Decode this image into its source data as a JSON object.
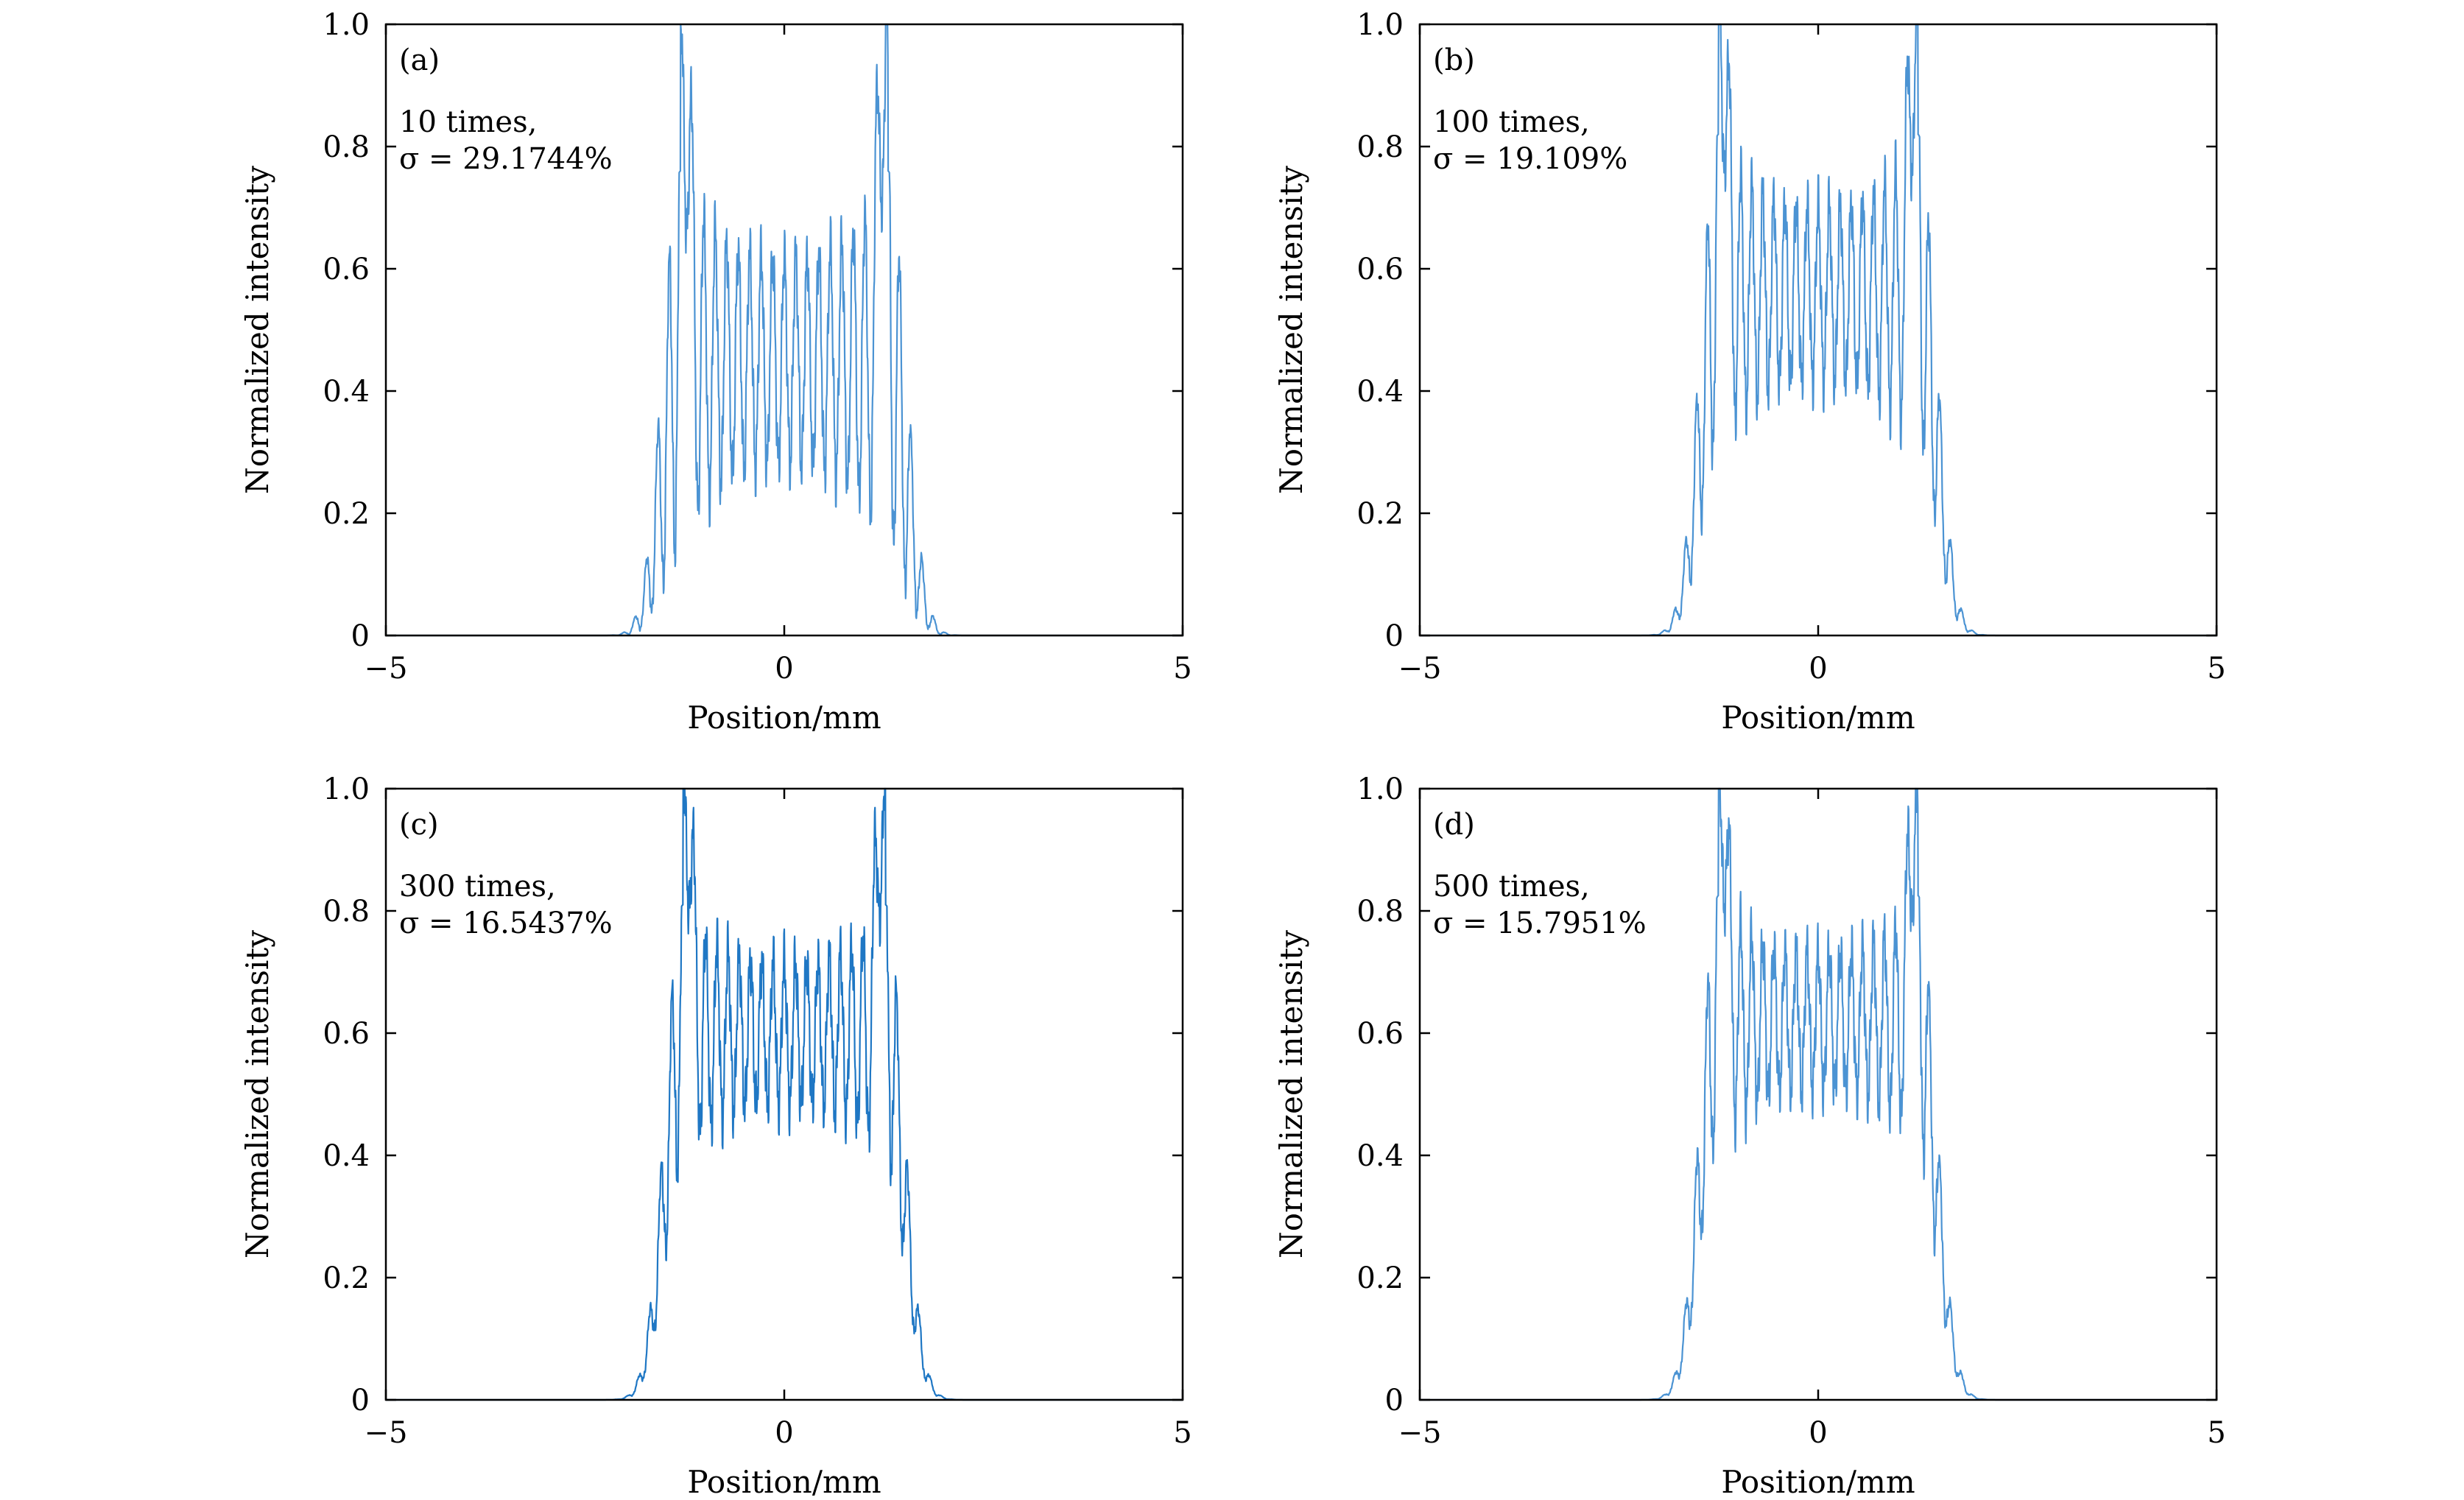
{
  "chart_data": [
    {
      "type": "line",
      "panel": "(a)",
      "annotation": [
        "10 times,",
        "σ = 29.1744%"
      ],
      "xlabel": "Position/mm",
      "ylabel": "Normalized intensity",
      "xlim": [
        -5,
        5
      ],
      "ylim": [
        0,
        1
      ],
      "xticks": [
        -5,
        0,
        5
      ],
      "xtick_labels": [
        "−5",
        "0",
        "5"
      ],
      "yticks": [
        0,
        0.2,
        0.4,
        0.6,
        0.8,
        1.0
      ],
      "ytick_labels": [
        "0",
        "0.2",
        "0.4",
        "0.6",
        "0.8",
        "1.0"
      ],
      "color": "#4b93d3",
      "series": [
        {
          "name": "10 times",
          "profile": {
            "edge_peak_left": 0.95,
            "edge_peak_right": 1.0,
            "fringe_max": 0.8,
            "fringe_min": 0.18,
            "center_level": 0.45,
            "half_width_mm": 1.3,
            "n_fringes": 18
          }
        }
      ]
    },
    {
      "type": "line",
      "panel": "(b)",
      "annotation": [
        "100 times,",
        "σ = 19.109%"
      ],
      "xlabel": "Position/mm",
      "ylabel": "Normalized intensity",
      "xlim": [
        -5,
        5
      ],
      "ylim": [
        0,
        1
      ],
      "xticks": [
        -5,
        0,
        5
      ],
      "xtick_labels": [
        "−5",
        "0",
        "5"
      ],
      "yticks": [
        0,
        0.2,
        0.4,
        0.6,
        0.8,
        1.0
      ],
      "ytick_labels": [
        "0",
        "0.2",
        "0.4",
        "0.6",
        "0.8",
        "1.0"
      ],
      "color": "#4b93d3",
      "series": [
        {
          "name": "100 times",
          "profile": {
            "edge_peak_left": 1.0,
            "edge_peak_right": 1.0,
            "fringe_max": 0.84,
            "fringe_min": 0.32,
            "center_level": 0.56,
            "half_width_mm": 1.25,
            "n_fringes": 18
          }
        }
      ]
    },
    {
      "type": "line",
      "panel": "(c)",
      "annotation": [
        "300 times,",
        "σ = 16.5437%"
      ],
      "xlabel": "Position/mm",
      "ylabel": "Normalized intensity",
      "xlim": [
        -5,
        5
      ],
      "ylim": [
        0,
        1
      ],
      "xticks": [
        -5,
        0,
        5
      ],
      "xtick_labels": [
        "−5",
        "0",
        "5"
      ],
      "yticks": [
        0,
        0.2,
        0.4,
        0.6,
        0.8,
        1.0
      ],
      "ytick_labels": [
        "0",
        "0.2",
        "0.4",
        "0.6",
        "0.8",
        "1.0"
      ],
      "color": "#1f77c4",
      "series": [
        {
          "name": "300 times",
          "profile": {
            "edge_peak_left": 1.0,
            "edge_peak_right": 0.99,
            "fringe_max": 0.84,
            "fringe_min": 0.42,
            "center_level": 0.6,
            "half_width_mm": 1.27,
            "n_fringes": 18
          }
        }
      ]
    },
    {
      "type": "line",
      "panel": "(d)",
      "annotation": [
        "500 times,",
        "σ = 15.7951%"
      ],
      "xlabel": "Position/mm",
      "ylabel": "Normalized intensity",
      "xlim": [
        -5,
        5
      ],
      "ylim": [
        0,
        1
      ],
      "xticks": [
        -5,
        0,
        5
      ],
      "xtick_labels": [
        "−5",
        "0",
        "5"
      ],
      "yticks": [
        0,
        0.2,
        0.4,
        0.6,
        0.8,
        1.0
      ],
      "ytick_labels": [
        "0",
        "0.2",
        "0.4",
        "0.6",
        "0.8",
        "1.0"
      ],
      "color": "#4b93d3",
      "series": [
        {
          "name": "500 times",
          "profile": {
            "edge_peak_left": 1.0,
            "edge_peak_right": 0.98,
            "fringe_max": 0.84,
            "fringe_min": 0.43,
            "center_level": 0.62,
            "half_width_mm": 1.25,
            "n_fringes": 18
          }
        }
      ]
    }
  ]
}
